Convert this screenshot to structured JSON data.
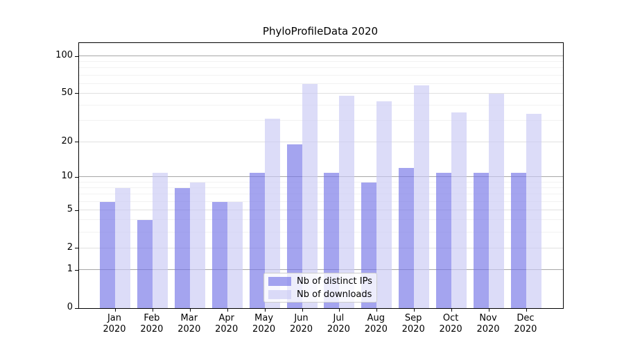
{
  "title": "PhyloProfileData 2020",
  "colors": {
    "bar_distinct_ips": "#a4a4ef",
    "bar_downloads": "#dcdcf8",
    "grid_minor": "#f2f2f2",
    "grid_major": "#e0e0e0",
    "grid_decade": "#a6a6a6",
    "frame": "#000000",
    "background": "#ffffff"
  },
  "chart_data": {
    "type": "bar",
    "title": "PhyloProfileData 2020",
    "categories": [
      "Jan",
      "Feb",
      "Mar",
      "Apr",
      "May",
      "Jun",
      "Jul",
      "Aug",
      "Sep",
      "Oct",
      "Nov",
      "Dec"
    ],
    "category_year": "2020",
    "series": [
      {
        "name": "Nb of distinct IPs",
        "color_hex": "#a4a4ef",
        "color_rgba": "rgba(115,115,230,0.65)",
        "values": [
          6,
          4,
          8,
          6,
          11,
          19,
          11,
          9,
          12,
          11,
          11,
          11
        ]
      },
      {
        "name": "Nb of downloads",
        "color_hex": "#dcdcf8",
        "color_rgba": "rgba(201,201,244,0.65)",
        "values": [
          8,
          11,
          9,
          6,
          31,
          60,
          48,
          43,
          58,
          35,
          50,
          34
        ]
      }
    ],
    "xlabel": "",
    "ylabel": "",
    "y_scale": "log1p",
    "ylim": [
      0,
      128
    ],
    "y_ticks": [
      0,
      1,
      2,
      5,
      10,
      20,
      50,
      100
    ],
    "y_minor_gridlines": [
      3,
      4,
      6,
      7,
      8,
      9,
      30,
      40,
      60,
      70,
      80,
      90
    ],
    "y_decade_gridlines": [
      1,
      10,
      100
    ],
    "grid": true,
    "legend_position": "inside-bottom-center"
  }
}
